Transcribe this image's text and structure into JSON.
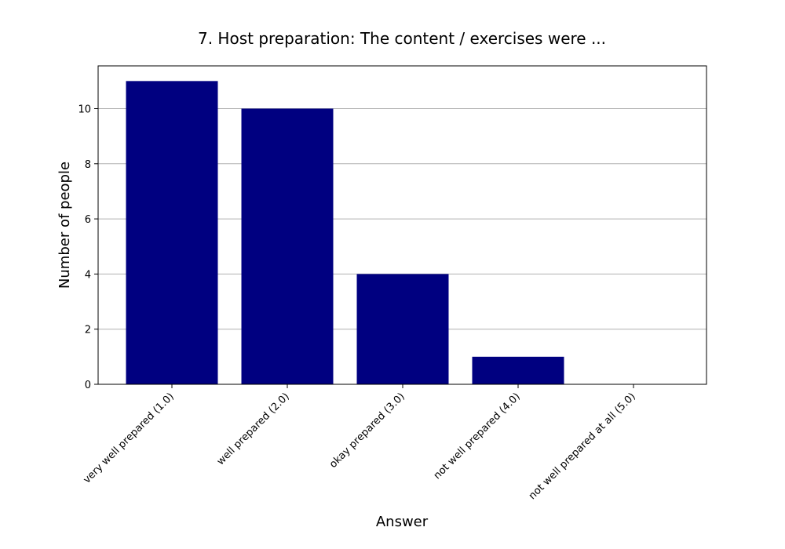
{
  "chart_data": {
    "type": "bar",
    "title": "7. Host preparation: The content / exercises were ...",
    "xlabel": "Answer",
    "ylabel": "Number of people",
    "categories": [
      "very well prepared (1.0)",
      "well prepared (2.0)",
      "okay prepared (3.0)",
      "not well prepared (4.0)",
      "not well prepared at all (5.0)"
    ],
    "values": [
      11,
      10,
      4,
      1,
      0
    ],
    "ylim": [
      0,
      11.55
    ],
    "yticks": [
      0,
      2,
      4,
      6,
      8,
      10
    ],
    "grid": "y",
    "bar_color": "#000080",
    "grid_color": "#b0b0b0"
  }
}
